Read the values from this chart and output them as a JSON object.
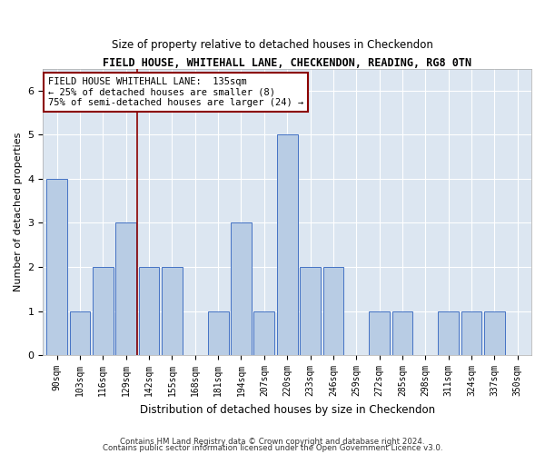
{
  "title": "FIELD HOUSE, WHITEHALL LANE, CHECKENDON, READING, RG8 0TN",
  "subtitle": "Size of property relative to detached houses in Checkendon",
  "xlabel": "Distribution of detached houses by size in Checkendon",
  "ylabel": "Number of detached properties",
  "categories": [
    "90sqm",
    "103sqm",
    "116sqm",
    "129sqm",
    "142sqm",
    "155sqm",
    "168sqm",
    "181sqm",
    "194sqm",
    "207sqm",
    "220sqm",
    "233sqm",
    "246sqm",
    "259sqm",
    "272sqm",
    "285sqm",
    "298sqm",
    "311sqm",
    "324sqm",
    "337sqm",
    "350sqm"
  ],
  "values": [
    4,
    1,
    2,
    3,
    2,
    2,
    0,
    1,
    3,
    1,
    5,
    2,
    2,
    0,
    1,
    1,
    0,
    1,
    1,
    1,
    0
  ],
  "bar_color": "#b8cce4",
  "bar_edge_color": "#4472c4",
  "background_color": "#dce6f1",
  "property_line_x": 3.5,
  "ylim": [
    0,
    6.5
  ],
  "property_label": "FIELD HOUSE WHITEHALL LANE:  135sqm",
  "property_smaller_pct": "← 25% of detached houses are smaller (8)",
  "property_larger_pct": "75% of semi-detached houses are larger (24) →",
  "footer1": "Contains HM Land Registry data © Crown copyright and database right 2024.",
  "footer2": "Contains public sector information licensed under the Open Government Licence v3.0."
}
